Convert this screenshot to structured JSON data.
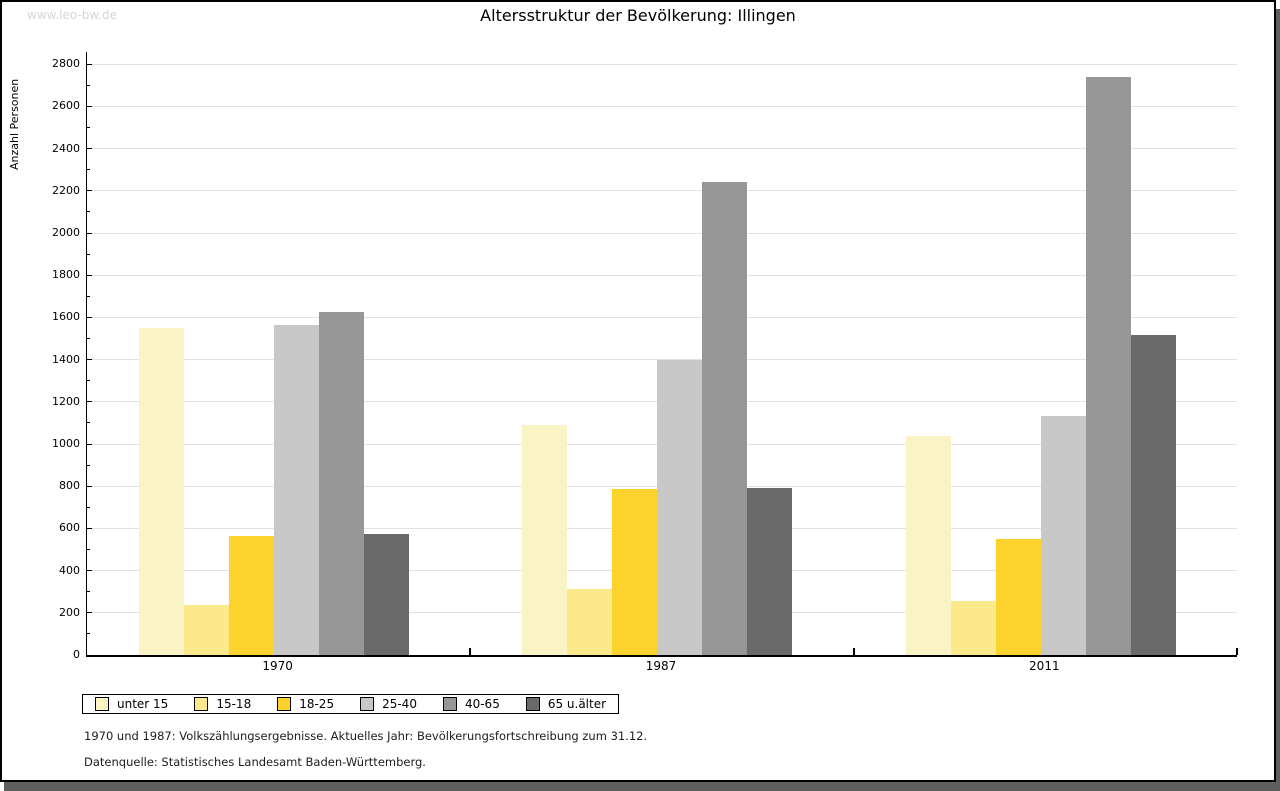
{
  "page": {
    "watermark": "www.leo-bw.de"
  },
  "chart_data": {
    "type": "bar",
    "title": "Altersstruktur der Bevölkerung: Illingen",
    "ylabel": "Anzahl Personen",
    "xlabel": "",
    "categories": [
      "1970",
      "1987",
      "2011"
    ],
    "series": [
      {
        "name": "unter 15",
        "color": "#faf3c6",
        "values": [
          1550,
          1090,
          1040
        ]
      },
      {
        "name": "15-18",
        "color": "#fbe98c",
        "values": [
          235,
          315,
          255
        ]
      },
      {
        "name": "18-25",
        "color": "#fcd32d",
        "values": [
          565,
          785,
          550
        ]
      },
      {
        "name": "25-40",
        "color": "#c8c8c8",
        "values": [
          1565,
          1400,
          1135
        ]
      },
      {
        "name": "40-65",
        "color": "#979797",
        "values": [
          1625,
          2240,
          2740
        ]
      },
      {
        "name": "65 u.älter",
        "color": "#6a6a6a",
        "values": [
          575,
          790,
          1515
        ]
      }
    ],
    "ylim": [
      0,
      2800
    ],
    "ytick_step": 200,
    "y_minor_step": 100,
    "grid": true,
    "legend_position": "bottom-left",
    "axis_color": "#000000",
    "grid_color": "#e2e2e2"
  },
  "footer": {
    "line1": "1970 und 1987: Volkszählungsergebnisse. Aktuelles Jahr: Bevölkerungsfortschreibung zum 31.12.",
    "line2": "Datenquelle: Statistisches Landesamt Baden-Württemberg."
  }
}
